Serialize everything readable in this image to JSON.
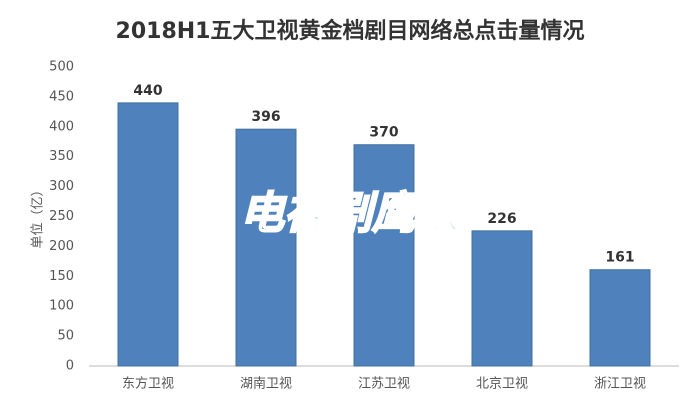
{
  "chart_data": {
    "type": "bar",
    "title": "2018H1五大卫视黄金档剧目网络总点击量情况",
    "y_label": "单位（亿）",
    "watermark": "电视剧鹰眼",
    "categories": [
      "东方卫视",
      "湖南卫视",
      "江苏卫视",
      "北京卫视",
      "浙江卫视"
    ],
    "values": [
      440,
      396,
      370,
      226,
      161
    ],
    "color": "#4f81bd",
    "ylim": [
      0,
      500
    ],
    "yticks": [
      0,
      50,
      100,
      150,
      200,
      250,
      300,
      350,
      400,
      450,
      500
    ],
    "grid": false
  }
}
